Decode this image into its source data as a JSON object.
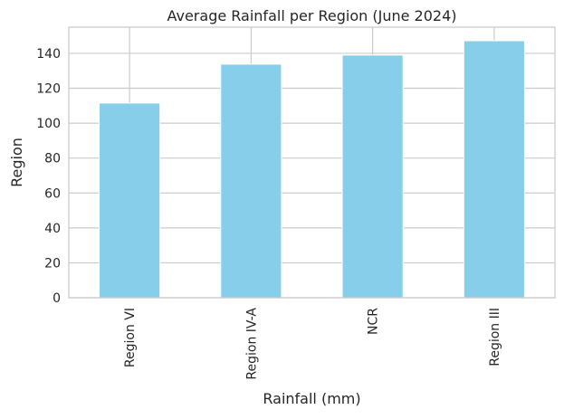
{
  "chart_data": {
    "type": "bar",
    "title": "Average Rainfall per Region (June 2024)",
    "xlabel": "Rainfall (mm)",
    "ylabel": "Region",
    "categories": [
      "Region VI",
      "Region IV-A",
      "NCR",
      "Region III"
    ],
    "values": [
      111.5,
      133.8,
      139.0,
      147.2
    ],
    "ylim": [
      0,
      155
    ],
    "yticks": [
      0,
      20,
      40,
      60,
      80,
      100,
      120,
      140
    ],
    "grid": true,
    "legend": "none",
    "bar_color": "#87ceeb",
    "grid_color": "#cccccc",
    "text_color": "#262626"
  }
}
